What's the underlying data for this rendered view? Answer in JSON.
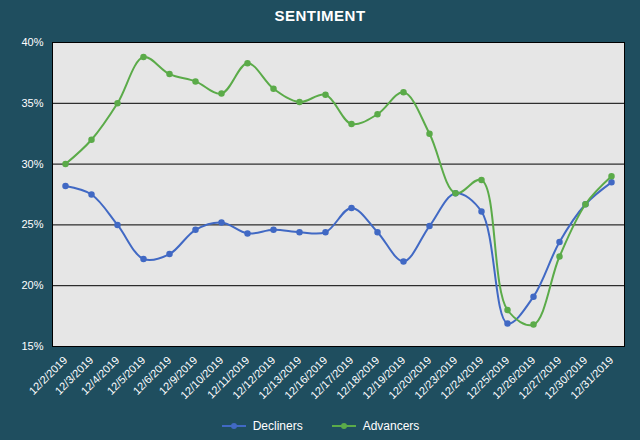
{
  "chart_data": {
    "type": "line",
    "title": "SENTIMENT",
    "categories": [
      "12/2/2019",
      "12/3/2019",
      "12/4/2019",
      "12/5/2019",
      "12/6/2019",
      "12/9/2019",
      "12/10/2019",
      "12/11/2019",
      "12/12/2019",
      "12/13/2019",
      "12/16/2019",
      "12/17/2019",
      "12/18/2019",
      "12/19/2019",
      "12/20/2019",
      "12/23/2019",
      "12/24/2019",
      "12/25/2019",
      "12/26/2019",
      "12/27/2019",
      "12/30/2019",
      "12/31/2019"
    ],
    "series": [
      {
        "name": "Decliners",
        "color": "#4169c4",
        "marker": "circle",
        "line_style": "solid",
        "values": [
          28.2,
          27.5,
          25.0,
          22.2,
          22.6,
          24.6,
          25.2,
          24.3,
          24.6,
          24.4,
          24.4,
          26.4,
          24.4,
          22.0,
          24.9,
          27.6,
          26.1,
          16.9,
          19.1,
          23.6,
          26.7,
          28.5
        ]
      },
      {
        "name": "Advancers",
        "color": "#5bab49",
        "marker": "circle",
        "line_style": "solid",
        "values": [
          30.0,
          32.0,
          35.0,
          38.8,
          37.4,
          36.8,
          35.8,
          38.3,
          36.2,
          35.1,
          35.7,
          33.3,
          34.1,
          35.9,
          32.5,
          27.6,
          28.7,
          18.0,
          16.8,
          22.4,
          26.7,
          29.0
        ]
      }
    ],
    "ylim": [
      15,
      40
    ],
    "yticks": [
      {
        "value": 15,
        "label": "15%"
      },
      {
        "value": 20,
        "label": "20%"
      },
      {
        "value": 25,
        "label": "25%"
      },
      {
        "value": 30,
        "label": "30%"
      },
      {
        "value": 35,
        "label": "35%"
      },
      {
        "value": 40,
        "label": "40%"
      }
    ],
    "grid": true,
    "legend": "bottom"
  }
}
